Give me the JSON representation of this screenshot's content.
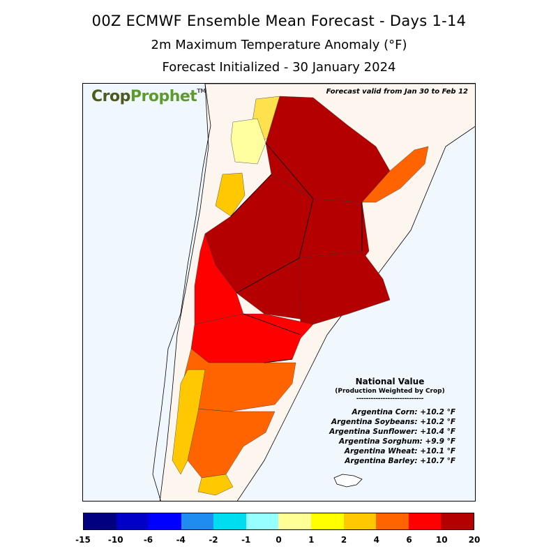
{
  "titles": {
    "line1": "00Z ECMWF Ensemble Mean Forecast  -  Days 1-14",
    "line2": "2m Maximum Temperature Anomaly (°F)",
    "line3": "Forecast Initialized - 30 January 2024"
  },
  "logo": {
    "part1": "Crop",
    "part2": "Prophet",
    "tm": "TM"
  },
  "valid_text": "Forecast valid from Jan 30 to Feb 12",
  "national_value": {
    "title": "National Value",
    "subtitle": "(Production Weighted by Crop)",
    "separator": "----------------------------",
    "rows": [
      "Argentina Corn: +10.2 °F",
      "Argentina Soybeans: +10.2 °F",
      "Argentina Sunflower: +10.4 °F",
      "Argentina Sorghum:  +9.9 °F",
      "Argentina Wheat: +10.1 °F",
      "Argentina Barley: +10.7 °F"
    ]
  },
  "colorbar": {
    "colors": [
      "#000080",
      "#0000c8",
      "#0000ff",
      "#1e8cf0",
      "#00dcf0",
      "#96ffff",
      "#ffff96",
      "#ffff00",
      "#ffc800",
      "#ff6400",
      "#ff0000",
      "#b40000"
    ],
    "ticks": [
      "-15",
      "-10",
      "-6",
      "-4",
      "-2",
      "-1",
      "0",
      "1",
      "2",
      "4",
      "6",
      "10",
      "20"
    ]
  },
  "regions": [
    {
      "name": "north-andes",
      "color": "#ffe14d"
    },
    {
      "name": "catamarca-west",
      "color": "#ffffa0"
    },
    {
      "name": "la-rioja-west",
      "color": "#ffc800"
    },
    {
      "name": "northeast-interior",
      "color": "#b40000"
    },
    {
      "name": "misiones",
      "color": "#ff6400"
    },
    {
      "name": "central-core",
      "color": "#b40000"
    },
    {
      "name": "buenos-aires",
      "color": "#b40000"
    },
    {
      "name": "la-pampa-west",
      "color": "#ff0000"
    },
    {
      "name": "rio-negro",
      "color": "#ff0000"
    },
    {
      "name": "chubut",
      "color": "#ff6400"
    },
    {
      "name": "santa-cruz",
      "color": "#ff6400"
    },
    {
      "name": "andes-south",
      "color": "#ffc800"
    },
    {
      "name": "tierra-del-fuego",
      "color": "#ffc800"
    }
  ]
}
